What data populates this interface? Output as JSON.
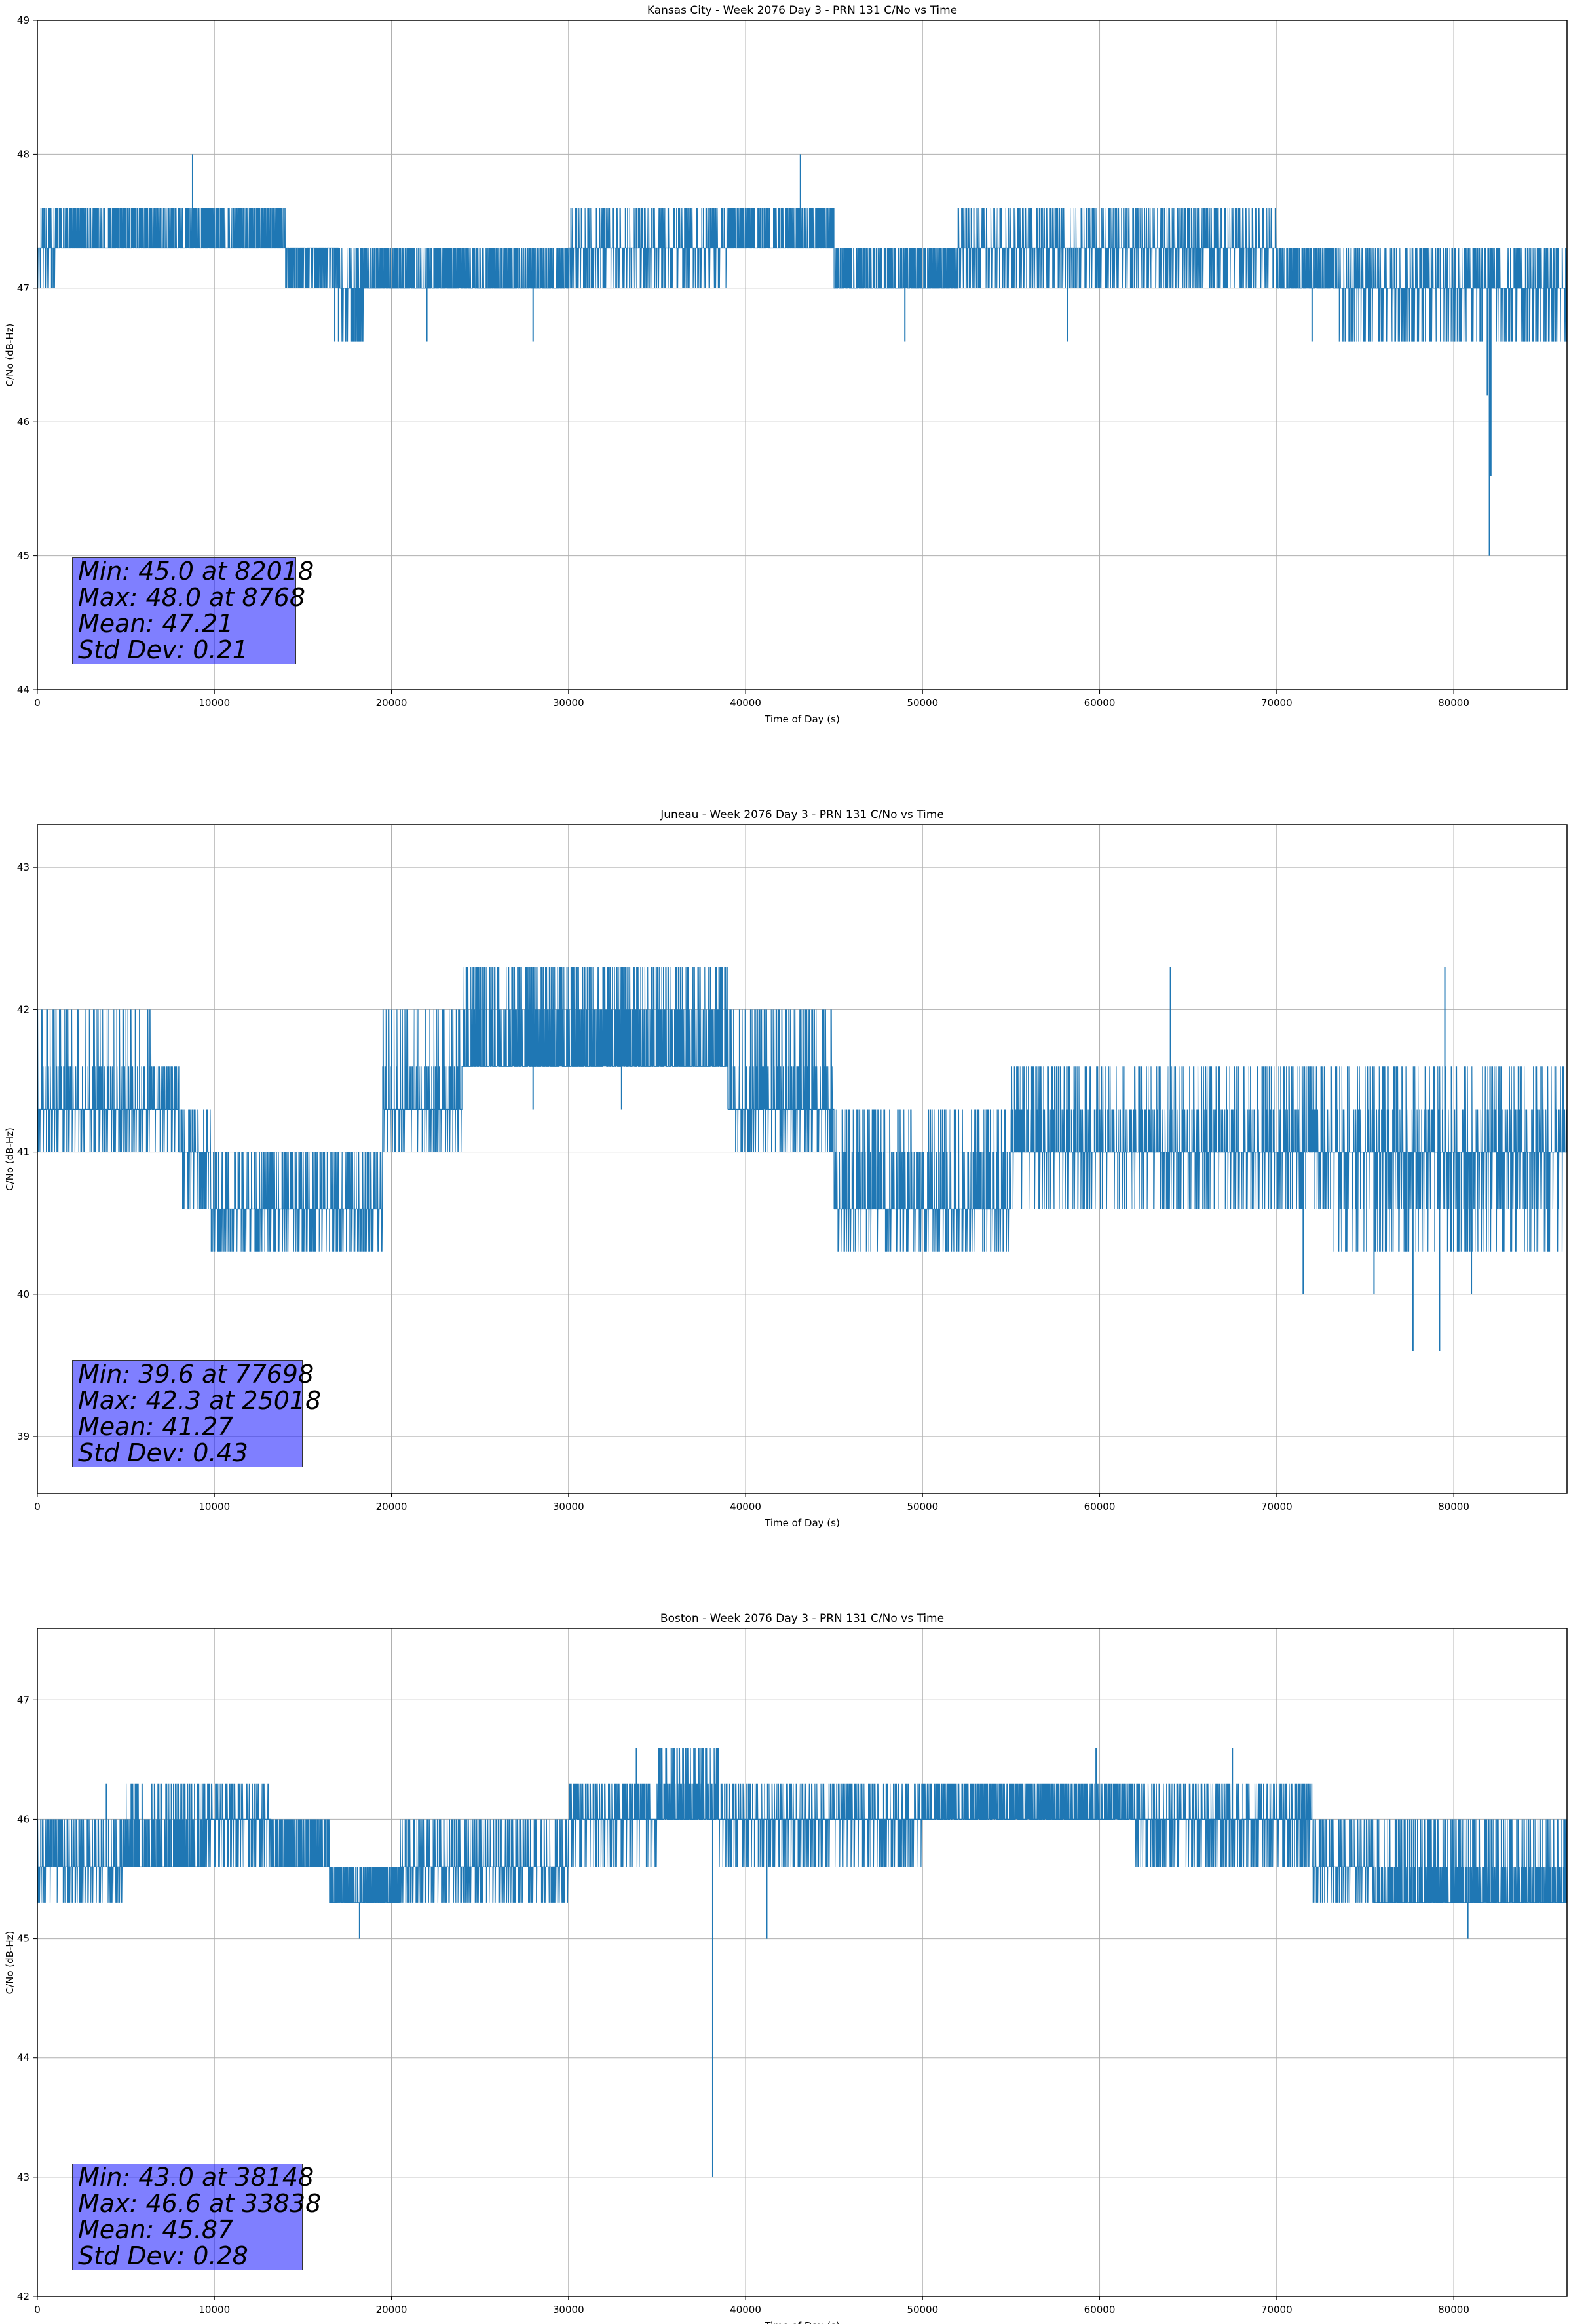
{
  "colors": {
    "series": "#1f77b4",
    "grid": "#b0b0b0",
    "axes": "#000000",
    "stats_box": "#8080ff"
  },
  "chart_data": [
    {
      "type": "line",
      "title": "Kansas City - Week 2076 Day 3 - PRN 131 C/No vs Time",
      "xlabel": "Time of Day (s)",
      "ylabel": "C/No (dB-Hz)",
      "xlim": [
        0,
        86400
      ],
      "ylim": [
        44,
        49
      ],
      "xticks": [
        0,
        10000,
        20000,
        30000,
        40000,
        50000,
        60000,
        70000,
        80000
      ],
      "yticks": [
        44,
        45,
        46,
        47,
        48,
        49
      ],
      "grid": true,
      "stats": [
        "Min: 45.0 at 82018",
        "Max: 48.0 at 8768",
        "Mean: 47.21",
        "Std Dev: 0.21"
      ],
      "series": [
        {
          "name": "PRN 131 C/No",
          "segments": [
            {
              "t0": 0,
              "t1": 1000,
              "base": 47.3,
              "levels": [
                47.6,
                47.0
              ]
            },
            {
              "t0": 1000,
              "t1": 14000,
              "base": 47.3,
              "levels": [
                47.6
              ]
            },
            {
              "t0": 14000,
              "t1": 17000,
              "base": 47.3,
              "levels": [
                47.0
              ]
            },
            {
              "t0": 17000,
              "t1": 18500,
              "base": 47.0,
              "levels": [
                47.3,
                46.6
              ]
            },
            {
              "t0": 18500,
              "t1": 30000,
              "base": 47.0,
              "levels": [
                47.3
              ]
            },
            {
              "t0": 30000,
              "t1": 39000,
              "base": 47.3,
              "levels": [
                47.6,
                47.0
              ]
            },
            {
              "t0": 39000,
              "t1": 45000,
              "base": 47.3,
              "levels": [
                47.6
              ]
            },
            {
              "t0": 45000,
              "t1": 52000,
              "base": 47.0,
              "levels": [
                47.3
              ]
            },
            {
              "t0": 52000,
              "t1": 70000,
              "base": 47.3,
              "levels": [
                47.6,
                47.0
              ]
            },
            {
              "t0": 70000,
              "t1": 73500,
              "base": 47.0,
              "levels": [
                47.3
              ]
            },
            {
              "t0": 73500,
              "t1": 86400,
              "base": 47.0,
              "levels": [
                47.3,
                46.6
              ]
            }
          ],
          "spikes": [
            [
              8768,
              48.0
            ],
            [
              43100,
              48.0
            ],
            [
              16800,
              46.6
            ],
            [
              22000,
              46.6
            ],
            [
              28000,
              46.6
            ],
            [
              49000,
              46.6
            ],
            [
              58200,
              46.6
            ],
            [
              72000,
              46.6
            ],
            [
              82018,
              45.0
            ],
            [
              81900,
              46.2
            ],
            [
              82100,
              45.6
            ]
          ]
        }
      ]
    },
    {
      "type": "line",
      "title": "Juneau - Week 2076 Day 3 - PRN 131 C/No vs Time",
      "xlabel": "Time of Day (s)",
      "ylabel": "C/No (dB-Hz)",
      "xlim": [
        0,
        86400
      ],
      "ylim": [
        38.6,
        43.3
      ],
      "xticks": [
        0,
        10000,
        20000,
        30000,
        40000,
        50000,
        60000,
        70000,
        80000
      ],
      "yticks": [
        39,
        40,
        41,
        42,
        43
      ],
      "grid": true,
      "stats": [
        "Min: 39.6 at 77698",
        "Max: 42.3 at 25018",
        "Mean: 41.27",
        "Std Dev: 0.43"
      ],
      "series": [
        {
          "name": "PRN 131 C/No",
          "segments": [
            {
              "t0": 0,
              "t1": 6500,
              "base": 41.3,
              "levels": [
                41.6,
                42.0,
                41.0
              ]
            },
            {
              "t0": 6500,
              "t1": 8000,
              "base": 41.3,
              "levels": [
                41.6,
                41.0
              ]
            },
            {
              "t0": 8000,
              "t1": 9800,
              "base": 41.0,
              "levels": [
                41.3,
                40.6
              ]
            },
            {
              "t0": 9800,
              "t1": 19500,
              "base": 40.6,
              "levels": [
                41.0,
                40.3
              ]
            },
            {
              "t0": 19500,
              "t1": 24000,
              "base": 41.3,
              "levels": [
                41.6,
                42.0,
                41.0
              ]
            },
            {
              "t0": 24000,
              "t1": 39000,
              "base": 41.6,
              "levels": [
                42.0,
                42.3
              ]
            },
            {
              "t0": 39000,
              "t1": 45000,
              "base": 41.3,
              "levels": [
                41.6,
                42.0,
                41.0
              ]
            },
            {
              "t0": 45000,
              "t1": 55000,
              "base": 40.6,
              "levels": [
                41.0,
                41.3,
                40.3
              ]
            },
            {
              "t0": 55000,
              "t1": 73000,
              "base": 41.0,
              "levels": [
                41.3,
                41.6,
                40.6
              ]
            },
            {
              "t0": 73000,
              "t1": 86400,
              "base": 41.0,
              "levels": [
                40.6,
                41.3,
                41.6,
                40.3
              ]
            }
          ],
          "spikes": [
            [
              25018,
              42.3
            ],
            [
              64000,
              42.3
            ],
            [
              79500,
              42.3
            ],
            [
              77698,
              39.6
            ],
            [
              79200,
              39.6
            ],
            [
              71500,
              40.0
            ],
            [
              75500,
              40.0
            ],
            [
              81000,
              40.0
            ],
            [
              33000,
              41.3
            ],
            [
              28000,
              41.3
            ]
          ]
        }
      ]
    },
    {
      "type": "line",
      "title": "Boston - Week 2076 Day 3 - PRN 131 C/No vs Time",
      "xlabel": "Time of Day (s)",
      "ylabel": "C/No (dB-Hz)",
      "xlim": [
        0,
        86400
      ],
      "ylim": [
        42,
        47.6
      ],
      "xticks": [
        0,
        10000,
        20000,
        30000,
        40000,
        50000,
        60000,
        70000,
        80000
      ],
      "yticks": [
        42,
        43,
        44,
        45,
        46,
        47
      ],
      "grid": true,
      "stats": [
        "Min: 43.0 at 38148",
        "Max: 46.6 at 33838",
        "Mean: 45.87",
        "Std Dev: 0.28"
      ],
      "series": [
        {
          "name": "PRN 131 C/No",
          "segments": [
            {
              "t0": 0,
              "t1": 5000,
              "base": 45.6,
              "levels": [
                46.0,
                45.3
              ]
            },
            {
              "t0": 5000,
              "t1": 9500,
              "base": 45.6,
              "levels": [
                46.0,
                46.3
              ]
            },
            {
              "t0": 9500,
              "t1": 13200,
              "base": 46.0,
              "levels": [
                46.3,
                45.6
              ]
            },
            {
              "t0": 13200,
              "t1": 16500,
              "base": 45.6,
              "levels": [
                46.0
              ]
            },
            {
              "t0": 16500,
              "t1": 20500,
              "base": 45.3,
              "levels": [
                45.6
              ]
            },
            {
              "t0": 20500,
              "t1": 30000,
              "base": 45.6,
              "levels": [
                46.0,
                45.3
              ]
            },
            {
              "t0": 30000,
              "t1": 35000,
              "base": 46.0,
              "levels": [
                46.3,
                45.6
              ]
            },
            {
              "t0": 35000,
              "t1": 38500,
              "base": 46.0,
              "levels": [
                46.3,
                46.6
              ]
            },
            {
              "t0": 38500,
              "t1": 50000,
              "base": 46.0,
              "levels": [
                46.3,
                45.6
              ]
            },
            {
              "t0": 50000,
              "t1": 62000,
              "base": 46.0,
              "levels": [
                46.3
              ]
            },
            {
              "t0": 62000,
              "t1": 72000,
              "base": 46.0,
              "levels": [
                46.3,
                45.6
              ]
            },
            {
              "t0": 72000,
              "t1": 75500,
              "base": 45.6,
              "levels": [
                46.0,
                45.3
              ]
            },
            {
              "t0": 75500,
              "t1": 86400,
              "base": 45.3,
              "levels": [
                45.6,
                46.0
              ]
            }
          ],
          "spikes": [
            [
              38148,
              43.0
            ],
            [
              33838,
              46.6
            ],
            [
              18200,
              45.0
            ],
            [
              41200,
              45.0
            ],
            [
              80800,
              45.0
            ],
            [
              59800,
              46.6
            ],
            [
              67500,
              46.6
            ],
            [
              3900,
              46.3
            ]
          ]
        }
      ]
    }
  ]
}
